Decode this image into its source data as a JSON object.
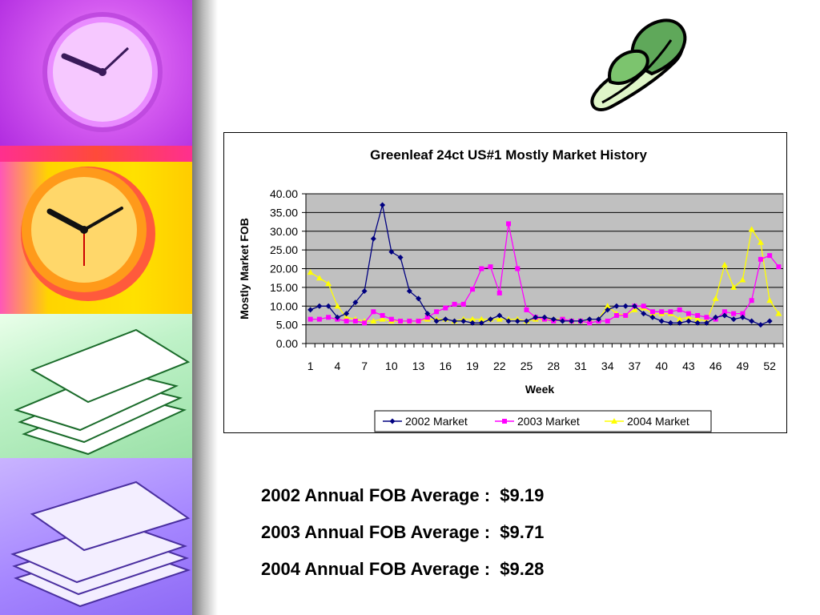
{
  "chart_data": {
    "type": "line",
    "title": "Greenleaf 24ct US#1 Mostly Market History",
    "xlabel": "Week",
    "ylabel": "Mostly Market FOB",
    "ylim": [
      0,
      40
    ],
    "yticks": [
      "0.00",
      "5.00",
      "10.00",
      "15.00",
      "20.00",
      "25.00",
      "30.00",
      "35.00",
      "40.00"
    ],
    "xticks": [
      "1",
      "4",
      "7",
      "10",
      "13",
      "16",
      "19",
      "22",
      "25",
      "28",
      "31",
      "34",
      "37",
      "40",
      "43",
      "46",
      "49",
      "52"
    ],
    "x": [
      1,
      2,
      3,
      4,
      5,
      6,
      7,
      8,
      9,
      10,
      11,
      12,
      13,
      14,
      15,
      16,
      17,
      18,
      19,
      20,
      21,
      22,
      23,
      24,
      25,
      26,
      27,
      28,
      29,
      30,
      31,
      32,
      33,
      34,
      35,
      36,
      37,
      38,
      39,
      40,
      41,
      42,
      43,
      44,
      45,
      46,
      47,
      48,
      49,
      50,
      51,
      52,
      53
    ],
    "plot_background": "#c0c0c0",
    "grid": true,
    "legend_position": "bottom",
    "series": [
      {
        "name": "2002 Market",
        "color": "#000080",
        "marker": "diamond",
        "values": [
          9,
          10,
          10,
          7,
          8,
          11,
          14,
          28,
          37,
          24.5,
          23,
          14,
          12,
          8,
          6,
          6.5,
          6,
          6,
          5.5,
          5.5,
          6.5,
          7.5,
          6,
          6,
          6,
          7,
          7,
          6.5,
          6,
          6,
          6,
          6.5,
          6.5,
          9,
          10,
          10,
          10,
          8,
          7,
          6,
          5.5,
          5.5,
          6,
          5.5,
          5.5,
          7,
          7.5,
          6.5,
          7,
          6,
          5,
          6,
          null
        ]
      },
      {
        "name": "2003 Market",
        "color": "#ff00ff",
        "marker": "square",
        "values": [
          6.5,
          6.5,
          7,
          6.5,
          6,
          6,
          5.5,
          8.5,
          7.5,
          6.5,
          6,
          6,
          6,
          7,
          8.5,
          9.5,
          10.5,
          10.5,
          14.5,
          20,
          20.5,
          13.5,
          32,
          20,
          9,
          7,
          6.5,
          6,
          6.5,
          6,
          6,
          5.5,
          6,
          6,
          7.5,
          7.5,
          10,
          10,
          8.5,
          8.5,
          8.5,
          9,
          8,
          7.5,
          7,
          6.5,
          8.5,
          8,
          8,
          11.5,
          22.5,
          23.5,
          20.5
        ]
      },
      {
        "name": "2004 Market",
        "color": "#ffff00",
        "marker": "triangle",
        "values": [
          19,
          17.5,
          16,
          10,
          7,
          6.5,
          6,
          6,
          6.5,
          6,
          6,
          6,
          6,
          6.5,
          6.5,
          6.5,
          6,
          6.5,
          6.5,
          6.5,
          6.5,
          6.5,
          6.5,
          6.5,
          6,
          6.5,
          6.5,
          6.5,
          6.5,
          6,
          6,
          6.5,
          6.5,
          10,
          8,
          7.5,
          9,
          9.5,
          8,
          8,
          8,
          6.5,
          7,
          6.5,
          6,
          12,
          21,
          15,
          17,
          30.5,
          27,
          11.5,
          8
        ]
      }
    ]
  },
  "averages": {
    "line_2002": "2002 Annual FOB Average :  $9.19",
    "line_2003": "2003 Annual FOB Average :  $9.71",
    "line_2004": "2004 Annual FOB Average :  $9.28"
  }
}
